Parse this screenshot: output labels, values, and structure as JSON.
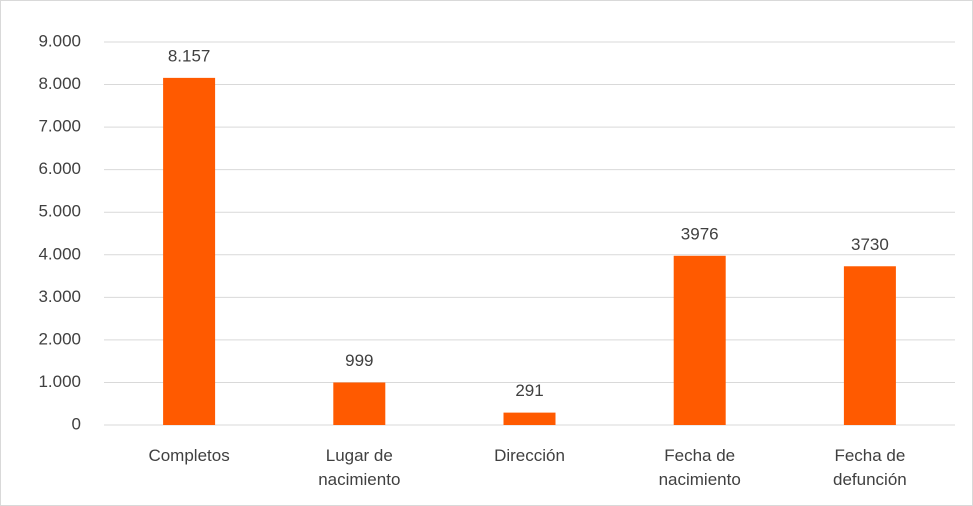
{
  "chart_data": {
    "type": "bar",
    "categories": [
      "Completos",
      "Lugar de nacimiento",
      "Dirección",
      "Fecha de nacimiento",
      "Fecha de defunción"
    ],
    "values": [
      8157,
      999,
      291,
      3976,
      3730
    ],
    "value_labels": [
      "8.157",
      "999",
      "291",
      "3976",
      "3730"
    ],
    "color": "#ff5a00",
    "ylim": [
      0,
      9000
    ],
    "yticks": [
      0,
      {
        "value": 1000,
        "label": "1.000"
      },
      {
        "value": 2000,
        "label": "2.000"
      },
      {
        "value": 3000,
        "label": "3.000"
      },
      {
        "value": 4000,
        "label": "4.000"
      },
      {
        "value": 5000,
        "label": "5.000"
      },
      {
        "value": 6000,
        "label": "6.000"
      },
      {
        "value": 7000,
        "label": "7.000"
      },
      {
        "value": 8000,
        "label": "8.000"
      },
      {
        "value": 9000,
        "label": "9.000"
      }
    ],
    "grid": true
  }
}
